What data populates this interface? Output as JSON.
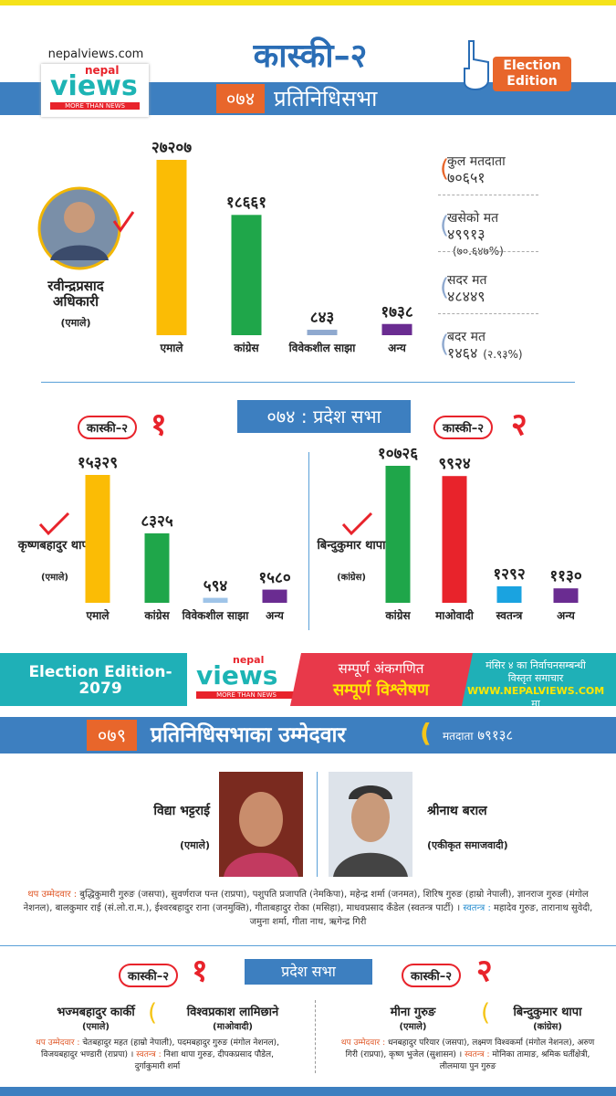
{
  "header": {
    "site": "nepalviews.com",
    "logo": {
      "brand_top": "nepal",
      "brand": "views",
      "tagline": "MORE THAN NEWS"
    },
    "title": "कास्की–२",
    "badge": "Election Edition",
    "year": "०७४",
    "house": "प्रतिनिधिसभा"
  },
  "chart_data": [
    {
      "type": "bar",
      "categories": [
        "एमाले",
        "कांग्रेस",
        "विवेकशील साझा",
        "अन्य"
      ],
      "values": [
        27207,
        18661,
        843,
        1738
      ],
      "value_labels": [
        "२७२०७",
        "१८६६१",
        "८४३",
        "१७३८"
      ],
      "colors": [
        "#fbbc05",
        "#1fa64a",
        "#8fa9cf",
        "#6a2c91"
      ]
    },
    {
      "type": "bar",
      "categories": [
        "एमाले",
        "कांग्रेस",
        "विवेकशील साझा",
        "अन्य"
      ],
      "values": [
        15329,
        8325,
        594,
        1580
      ],
      "value_labels": [
        "१५३२९",
        "८३२५",
        "५९४",
        "१५८०"
      ],
      "colors": [
        "#fbbc05",
        "#1fa64a",
        "#9fc4e8",
        "#6a2c91"
      ]
    },
    {
      "type": "bar",
      "categories": [
        "कांग्रेस",
        "माओवादी",
        "स्वतन्त्र",
        "अन्य"
      ],
      "values": [
        10726,
        9924,
        1292,
        1130
      ],
      "value_labels": [
        "१०७२६",
        "९९२४",
        "१२९२",
        "११३०"
      ],
      "colors": [
        "#1fa64a",
        "#e8232b",
        "#1aa3e0",
        "#6a2c91"
      ]
    }
  ],
  "hor_2074": {
    "winner": {
      "name": "रवीन्द्रप्रसाद अधिकारी",
      "party": "(एमाले)"
    },
    "stats": [
      {
        "label": "कुल मतदाता",
        "value": "७०६५१"
      },
      {
        "label": "खसेको मत",
        "value": "४९९१३",
        "note": "(७०.६४७%)"
      },
      {
        "label": "सदर मत",
        "value": "४८४४९"
      },
      {
        "label": "बदर मत",
        "value": "१४६४",
        "note": "(२.९३%)"
      }
    ]
  },
  "province_2074": {
    "title": "०७४ : प्रदेश सभा",
    "constituencies": [
      {
        "name": "कास्की–२",
        "number": "१",
        "winner": {
          "name": "कृष्णबहादुर थापा",
          "party": "(एमाले)"
        }
      },
      {
        "name": "कास्की–२",
        "number": "२",
        "winner": {
          "name": "बिन्दुकुमार थापा",
          "party": "(कांग्रेस)"
        }
      }
    ]
  },
  "banner": {
    "edition": "Election Edition- 2079",
    "logo": {
      "brand_top": "nepal",
      "brand": "views",
      "tagline": "MORE THAN NEWS"
    },
    "line1": "सम्पूर्ण अंकगणित",
    "line2": "सम्पूर्ण विश्लेषण",
    "info1": "मंसिर ४ का निर्वाचनसम्बन्धी",
    "info2": "विस्तृत समाचार",
    "url": "WWW.NEPALVIEWS.COM",
    "url_suffix": "मा"
  },
  "hor_2079": {
    "year": "०७९",
    "title": "प्रतिनिधिसभाका उम्मेदवार",
    "voters_label": "मतदाता",
    "voters": "७९१३८",
    "candidates": [
      {
        "name": "विद्या भट्टराई",
        "party": "(एमाले)"
      },
      {
        "name": "श्रीनाथ बराल",
        "party": "(एकीकृत समाजवादी)"
      }
    ],
    "others_label": "थप उम्मेदवार :",
    "others": "बुद्धिकुमारी गुरुङ (जसपा), सुवर्णराज पन्त (राप्रपा), पशुपति प्रजापति (नेमकिपा), महेन्द्र शर्मा (जनमत), शिरिष गुरुङ (हाम्रो नेपाली), ज्ञानराज गुरुङ (मंगोल नेशनल), बालकुमार राई (सं.लो.रा.म.), ईश्वरबहादुर राना (जनमुक्ति), गीताबहादुर रोका (मसिहा), माधवप्रसाद कँडेल (स्वतन्त्र पार्टी) ।",
    "independents_label": "स्वतन्त्र :",
    "independents": "महादेव गुरुङ, तारानाथ सुवेदी, जमुना शर्मा, गीता नाथ, ऋगेन्द्र गिरी"
  },
  "province_2079": {
    "title": "प्रदेश सभा",
    "constituencies": [
      {
        "name": "कास्की–२",
        "number": "१",
        "candidates": [
          {
            "name": "भज्मबहादुर कार्की",
            "party": "(एमाले)"
          },
          {
            "name": "विश्वप्रकाश लामिछाने",
            "party": "(माओवादी)"
          }
        ],
        "others_label": "थप उम्मेदवार :",
        "others": "चेतबहादुर महत (हाम्रो नेपाली), पदमबहादुर गुरुङ (मंगोल नेशनल), विजयबहादुर भण्डारी (राप्रपा) ।",
        "independents_label": "स्वतन्त्र :",
        "independents": "निशा थापा गुरुङ, दीपकप्रसाद पौडेल, दुर्गाकुमारी शर्मा"
      },
      {
        "name": "कास्की–२",
        "number": "२",
        "candidates": [
          {
            "name": "मीना गुरुङ",
            "party": "(एमाले)"
          },
          {
            "name": "बिन्दुकुमार थापा",
            "party": "(कांग्रेस)"
          }
        ],
        "others_label": "थप उम्मेदवार :",
        "others": "धनबहादुर परियार (जसपा), लक्ष्मण विश्वकर्मा (मंगोल नेशनल), अरुण गिरी (राप्रपा), कृष्ण भुजेल (सुशासन) ।",
        "independents_label": "स्वतन्त्र :",
        "independents": "मोनिका तामाङ, श्रमिक घर्तीक्षेत्री, लीलमाया पुन गुरुङ"
      }
    ]
  }
}
